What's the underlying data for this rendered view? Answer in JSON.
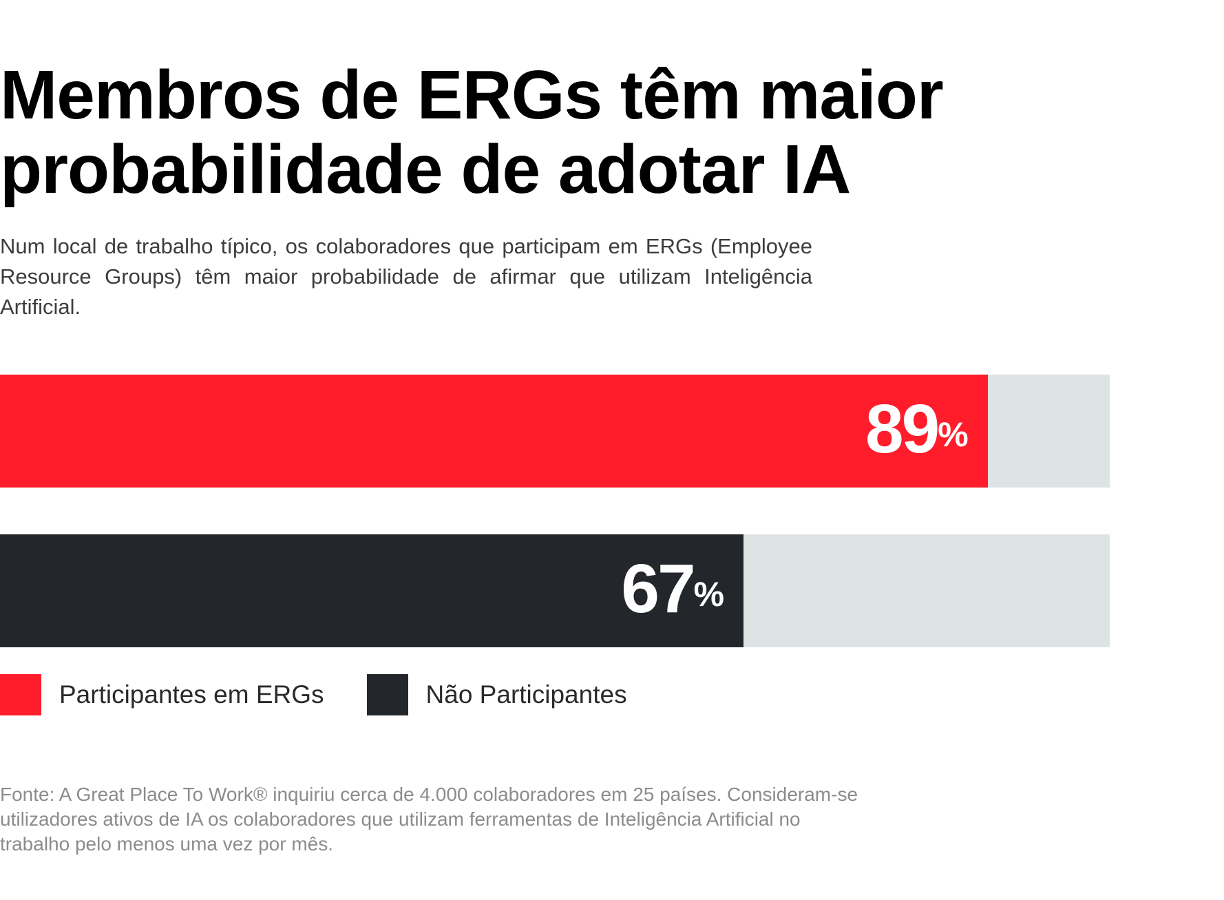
{
  "header": {
    "title": "Membros de ERGs têm maior probabilidade de adotar IA",
    "subtitle": "Num local de trabalho típico, os colaboradores que participam em ERGs (Employee Resource Groups) têm maior probabilidade de afirmar que utilizam Inteligência Artificial."
  },
  "chart_data": {
    "type": "bar",
    "orientation": "horizontal",
    "title": "",
    "xlabel": "",
    "ylabel": "",
    "xlim": [
      0,
      100
    ],
    "grid": false,
    "legend_position": "bottom-left",
    "categories": [
      "Participantes em ERGs",
      "Não Participantes"
    ],
    "values": [
      89,
      67
    ],
    "value_labels": [
      "89",
      "67"
    ],
    "value_suffix": "%",
    "colors": [
      "#ff1d2c",
      "#23262b"
    ],
    "track_color": "#dee3e3"
  },
  "legend": {
    "items": [
      {
        "label": "Participantes em ERGs",
        "color": "#ff1d2c"
      },
      {
        "label": "Não Participantes",
        "color": "#23262b"
      }
    ]
  },
  "source": {
    "text": "Fonte: A Great Place To Work® inquiriu cerca de 4.000 colaboradores em 25 países. Consideram-se utilizadores ativos de IA os colaboradores que utilizam ferramentas de Inteligência Artificial no trabalho pelo menos uma vez por mês."
  }
}
